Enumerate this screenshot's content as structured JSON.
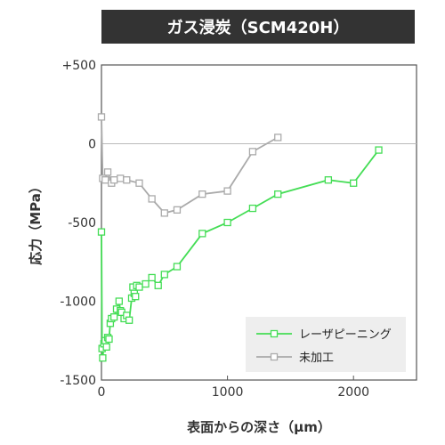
{
  "chart_data": {
    "type": "line",
    "title": "ガス浸炭（SCM420H）",
    "xlabel": "表面からの深さ（µm）",
    "ylabel": "応力（MPa）",
    "xlim": [
      0,
      2500
    ],
    "ylim": [
      -1500,
      500
    ],
    "x_ticks": [
      0,
      1000,
      2000
    ],
    "x_tick_labels": [
      "0",
      "1000",
      "2000"
    ],
    "y_ticks": [
      500,
      0,
      -500,
      -1000,
      -1500
    ],
    "y_tick_labels": [
      "+500",
      "0",
      "-500",
      "-1000",
      "-1500"
    ],
    "zero_line": true,
    "grid": false,
    "legend_position": "bottom-right",
    "series": [
      {
        "name": "レーザピーニング",
        "color": "#44dd55",
        "marker": "square-open",
        "x": [
          0,
          5,
          10,
          20,
          30,
          40,
          50,
          60,
          70,
          80,
          100,
          120,
          140,
          150,
          160,
          180,
          200,
          220,
          240,
          250,
          260,
          270,
          280,
          300,
          350,
          400,
          450,
          500,
          600,
          800,
          1000,
          1200,
          1400,
          1800,
          2000,
          2200
        ],
        "y": [
          -560,
          -1300,
          -1360,
          -1270,
          -1250,
          -1290,
          -1230,
          -1240,
          -1140,
          -1110,
          -1100,
          -1050,
          -1000,
          -1060,
          -1070,
          -1110,
          -1090,
          -1120,
          -980,
          -910,
          -950,
          -970,
          -900,
          -910,
          -890,
          -850,
          -900,
          -830,
          -780,
          -570,
          -500,
          -410,
          -320,
          -230,
          -250,
          -40
        ]
      },
      {
        "name": "未加工",
        "color": "#aaaaaa",
        "marker": "square-open",
        "x": [
          0,
          10,
          30,
          50,
          80,
          100,
          150,
          200,
          300,
          400,
          500,
          600,
          800,
          1000,
          1200,
          1400
        ],
        "y": [
          170,
          -220,
          -230,
          -180,
          -250,
          -230,
          -220,
          -230,
          -250,
          -350,
          -440,
          -420,
          -320,
          -300,
          -50,
          40
        ]
      }
    ]
  }
}
